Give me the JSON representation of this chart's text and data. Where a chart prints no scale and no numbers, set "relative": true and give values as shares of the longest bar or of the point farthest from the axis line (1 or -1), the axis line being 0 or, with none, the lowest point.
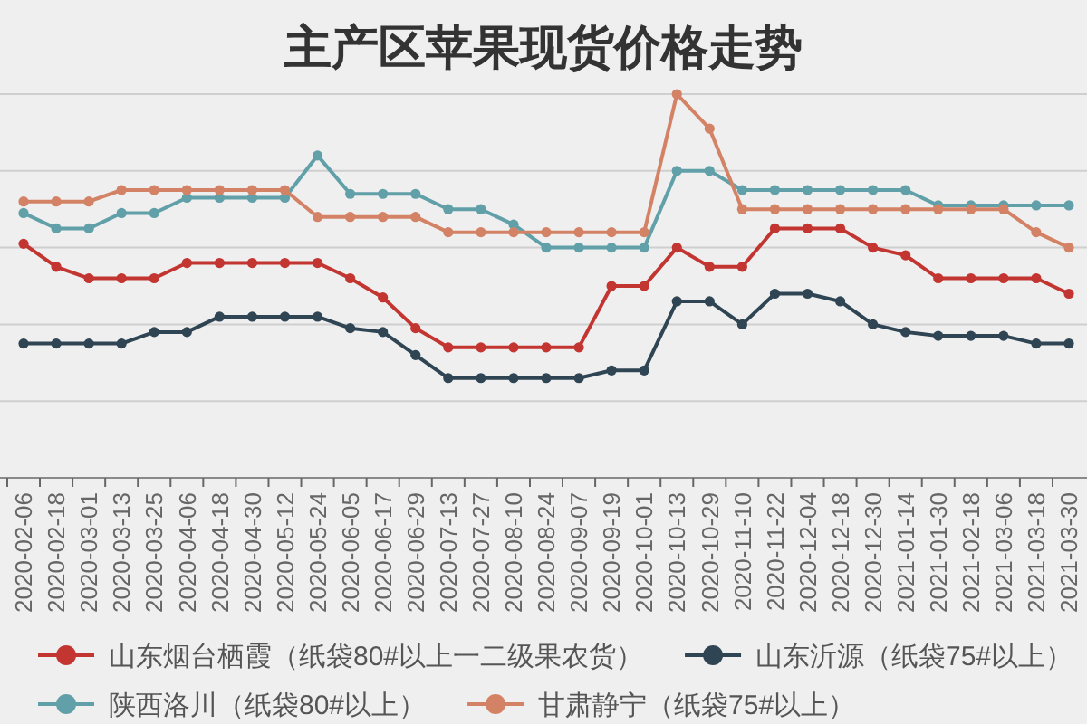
{
  "chart_data": {
    "type": "line",
    "title": "主产区苹果现货价格走势",
    "relative": true,
    "grid": "y",
    "legend": "bottom",
    "marker": "circle",
    "line_style": "solid",
    "tick_labels": "x",
    "categories": [
      "2020-02-06",
      "2020-02-18",
      "2020-03-01",
      "2020-03-13",
      "2020-03-25",
      "2020-04-06",
      "2020-04-18",
      "2020-04-30",
      "2020-05-12",
      "2020-05-24",
      "2020-06-05",
      "2020-06-17",
      "2020-06-29",
      "2020-07-13",
      "2020-07-27",
      "2020-08-10",
      "2020-08-24",
      "2020-09-07",
      "2020-09-19",
      "2020-10-01",
      "2020-10-13",
      "2020-10-29",
      "2020-11-10",
      "2020-11-22",
      "2020-12-04",
      "2020-12-18",
      "2020-12-30",
      "2021-01-14",
      "2021-01-30",
      "2021-02-18",
      "2021-03-06",
      "2021-03-18",
      "2021-03-30"
    ],
    "series": [
      {
        "name": "山东烟台栖霞（纸袋80#以上一二级果农货）",
        "color": "#c23531",
        "values": [
          0.61,
          0.55,
          0.52,
          0.52,
          0.52,
          0.56,
          0.56,
          0.56,
          0.56,
          0.56,
          0.52,
          0.47,
          0.39,
          0.34,
          0.34,
          0.34,
          0.34,
          0.34,
          0.5,
          0.5,
          0.6,
          0.55,
          0.55,
          0.65,
          0.65,
          0.65,
          0.6,
          0.58,
          0.52,
          0.52,
          0.52,
          0.52,
          0.48
        ]
      },
      {
        "name": "山东沂源（纸袋75#以上）",
        "color": "#2f4554",
        "values": [
          0.35,
          0.35,
          0.35,
          0.35,
          0.38,
          0.38,
          0.42,
          0.42,
          0.42,
          0.42,
          0.39,
          0.38,
          0.32,
          0.26,
          0.26,
          0.26,
          0.26,
          0.26,
          0.28,
          0.28,
          0.46,
          0.46,
          0.4,
          0.48,
          0.48,
          0.46,
          0.4,
          0.38,
          0.37,
          0.37,
          0.37,
          0.35,
          0.35
        ]
      },
      {
        "name": "陕西洛川（纸袋80#以上）",
        "color": "#61a0a8",
        "values": [
          0.69,
          0.65,
          0.65,
          0.69,
          0.69,
          0.73,
          0.73,
          0.73,
          0.73,
          0.84,
          0.74,
          0.74,
          0.74,
          0.7,
          0.7,
          0.66,
          0.6,
          0.6,
          0.6,
          0.6,
          0.8,
          0.8,
          0.75,
          0.75,
          0.75,
          0.75,
          0.75,
          0.75,
          0.71,
          0.71,
          0.71,
          0.71,
          0.71
        ]
      },
      {
        "name": "甘肃静宁（纸袋75#以上）",
        "color": "#d48265",
        "values": [
          0.72,
          0.72,
          0.72,
          0.75,
          0.75,
          0.75,
          0.75,
          0.75,
          0.75,
          0.68,
          0.68,
          0.68,
          0.68,
          0.64,
          0.64,
          0.64,
          0.64,
          0.64,
          0.64,
          0.64,
          1,
          0.91,
          0.7,
          0.7,
          0.7,
          0.7,
          0.7,
          0.7,
          0.7,
          0.7,
          0.7,
          0.64,
          0.6
        ]
      }
    ]
  }
}
